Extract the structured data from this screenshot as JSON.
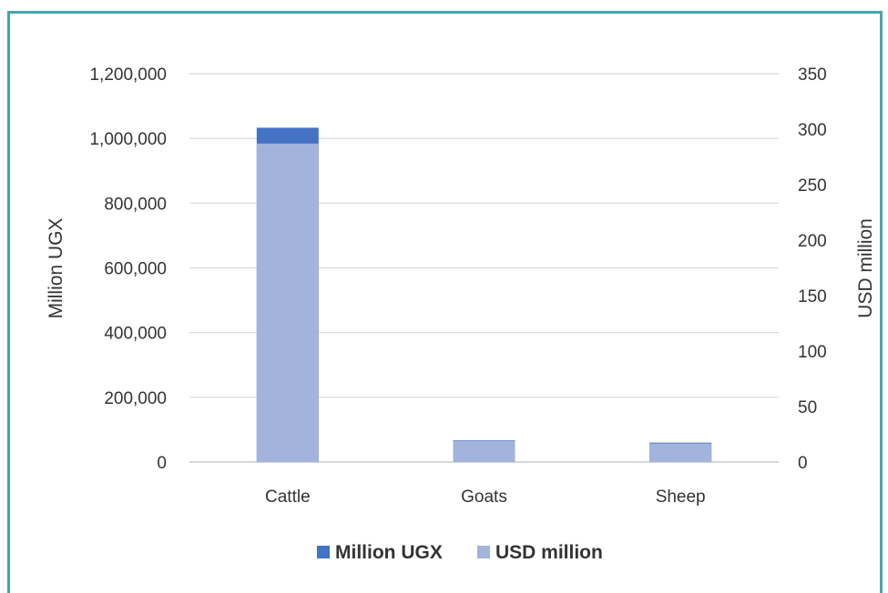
{
  "chart_data": {
    "type": "bar",
    "stacked": true,
    "categories": [
      "Cattle",
      "Goats",
      "Sheep"
    ],
    "series": [
      {
        "name": "Million UGX",
        "axis": "left",
        "color": "#4472c4",
        "values": [
          1033000,
          67000,
          60000
        ]
      },
      {
        "name": "USD million",
        "axis": "right",
        "color": "#a2b4dc",
        "values": [
          287,
          19,
          16.8
        ]
      }
    ],
    "y_left": {
      "label": "Million UGX",
      "ylim": [
        0,
        1200000
      ],
      "ticks": [
        "0",
        "200,000",
        "400,000",
        "600,000",
        "800,000",
        "1,000,000",
        "1,200,000"
      ]
    },
    "y_right": {
      "label": "USD million",
      "ylim": [
        0,
        350
      ],
      "ticks": [
        "0",
        "50",
        "100",
        "150",
        "200",
        "250",
        "300",
        "350"
      ]
    },
    "grid": true,
    "legend_position": "bottom"
  }
}
